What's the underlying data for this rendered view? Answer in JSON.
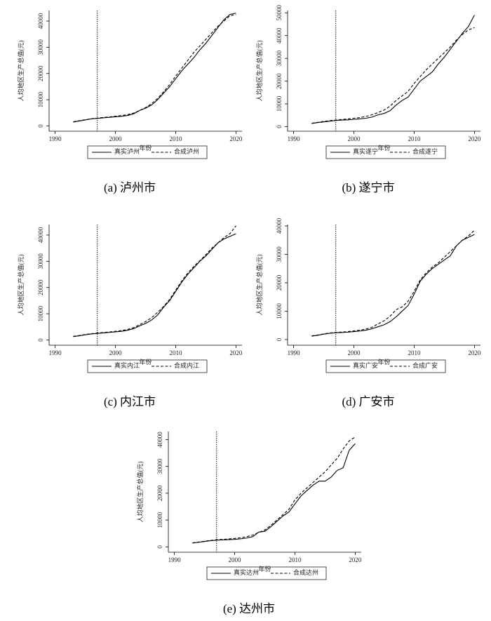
{
  "chart_data": [
    {
      "type": "line",
      "title": "(a) 泸州市",
      "y_label": "人均地区生产总值(元)",
      "x_label": "年份",
      "x": [
        1993,
        1994,
        1995,
        1996,
        1997,
        1998,
        1999,
        2000,
        2001,
        2002,
        2003,
        2004,
        2005,
        2006,
        2007,
        2008,
        2009,
        2010,
        2011,
        2012,
        2013,
        2014,
        2015,
        2016,
        2017,
        2018,
        2019,
        2020
      ],
      "series": [
        {
          "name": "真实泸州",
          "color": "#000000",
          "linestyle": "solid",
          "values": [
            1500,
            1900,
            2300,
            2700,
            2900,
            3100,
            3300,
            3500,
            3700,
            4000,
            4600,
            5900,
            6800,
            8000,
            10000,
            12500,
            15000,
            18000,
            21000,
            23500,
            26000,
            29000,
            31500,
            34500,
            37500,
            40500,
            42500,
            43000
          ]
        },
        {
          "name": "合成泸州",
          "color": "#000000",
          "linestyle": "dashed",
          "values": [
            1600,
            2000,
            2400,
            2750,
            3000,
            3250,
            3450,
            3700,
            3950,
            4300,
            4900,
            5900,
            7000,
            8500,
            10500,
            13000,
            15800,
            19000,
            22000,
            25000,
            28000,
            30500,
            33000,
            35500,
            38000,
            40000,
            42000,
            42500
          ]
        }
      ],
      "vline": 1997,
      "xlim": [
        1989,
        2021
      ],
      "xticks": [
        1990,
        2000,
        2010,
        2020
      ],
      "ylim": [
        -2000,
        44000
      ],
      "yticks": [
        0,
        10000,
        20000,
        30000,
        40000
      ]
    },
    {
      "type": "line",
      "title": "(b) 遂宁市",
      "y_label": "人均地区生产总值(元)",
      "x_label": "年份",
      "x": [
        1993,
        1994,
        1995,
        1996,
        1997,
        1998,
        1999,
        2000,
        2001,
        2002,
        2003,
        2004,
        2005,
        2006,
        2007,
        2008,
        2009,
        2010,
        2011,
        2012,
        2013,
        2014,
        2015,
        2016,
        2017,
        2018,
        2019,
        2020
      ],
      "series": [
        {
          "name": "真实遂宁",
          "color": "#000000",
          "linestyle": "solid",
          "values": [
            1400,
            1800,
            2100,
            2400,
            2700,
            2900,
            3000,
            3200,
            3400,
            3700,
            4200,
            5200,
            5800,
            7000,
            9500,
            11500,
            13000,
            16500,
            20000,
            22000,
            24000,
            27500,
            30500,
            34000,
            37500,
            41000,
            44000,
            49000
          ]
        },
        {
          "name": "合成遂宁",
          "color": "#000000",
          "linestyle": "dashed",
          "values": [
            1500,
            1900,
            2300,
            2650,
            2900,
            3150,
            3400,
            3700,
            4000,
            4500,
            5200,
            6200,
            7300,
            9000,
            11500,
            13500,
            15500,
            19000,
            22000,
            25000,
            27500,
            30000,
            32500,
            35000,
            38000,
            40500,
            42500,
            43500
          ]
        }
      ],
      "vline": 1997,
      "xlim": [
        1989,
        2021
      ],
      "xticks": [
        1990,
        2000,
        2010,
        2020
      ],
      "ylim": [
        -2000,
        51000
      ],
      "yticks": [
        0,
        10000,
        20000,
        30000,
        40000,
        50000
      ]
    },
    {
      "type": "line",
      "title": "(c) 内江市",
      "y_label": "人均地区生产总值(元)",
      "x_label": "年份",
      "x": [
        1993,
        1994,
        1995,
        1996,
        1997,
        1998,
        1999,
        2000,
        2001,
        2002,
        2003,
        2004,
        2005,
        2006,
        2007,
        2008,
        2009,
        2010,
        2011,
        2012,
        2013,
        2014,
        2015,
        2016,
        2017,
        2018,
        2019,
        2020
      ],
      "series": [
        {
          "name": "真实内江",
          "color": "#000000",
          "linestyle": "solid",
          "values": [
            1300,
            1600,
            2000,
            2300,
            2500,
            2700,
            2900,
            3100,
            3300,
            3700,
            4300,
            5400,
            6300,
            7600,
            9500,
            12500,
            15000,
            18500,
            22000,
            25000,
            27500,
            30000,
            32000,
            34500,
            37000,
            38500,
            39500,
            40500
          ]
        },
        {
          "name": "合成内江",
          "color": "#000000",
          "linestyle": "dashed",
          "values": [
            1400,
            1700,
            2100,
            2400,
            2650,
            2850,
            3050,
            3300,
            3600,
            4000,
            4700,
            5800,
            7000,
            8500,
            10500,
            12800,
            15500,
            19000,
            22500,
            25500,
            28000,
            30200,
            32500,
            35000,
            37000,
            39000,
            40500,
            43500
          ]
        }
      ],
      "vline": 1997,
      "xlim": [
        1989,
        2021
      ],
      "xticks": [
        1990,
        2000,
        2010,
        2020
      ],
      "ylim": [
        -2000,
        44000
      ],
      "yticks": [
        0,
        10000,
        20000,
        30000,
        40000
      ]
    },
    {
      "type": "line",
      "title": "(d) 广安市",
      "y_label": "人均地区生产总值(元)",
      "x_label": "年份",
      "x": [
        1993,
        1994,
        1995,
        1996,
        1997,
        1998,
        1999,
        2000,
        2001,
        2002,
        2003,
        2004,
        2005,
        2006,
        2007,
        2008,
        2009,
        2010,
        2011,
        2012,
        2013,
        2014,
        2015,
        2016,
        2017,
        2018,
        2019,
        2020
      ],
      "series": [
        {
          "name": "真实广安",
          "color": "#000000",
          "linestyle": "solid",
          "values": [
            1200,
            1500,
            1900,
            2200,
            2400,
            2500,
            2600,
            2800,
            3000,
            3300,
            3800,
            4500,
            5200,
            6300,
            8000,
            10000,
            12000,
            16000,
            20500,
            23000,
            25000,
            26500,
            28000,
            29500,
            33000,
            35000,
            36000,
            37000
          ]
        },
        {
          "name": "合成广安",
          "color": "#000000",
          "linestyle": "dashed",
          "values": [
            1300,
            1600,
            2000,
            2300,
            2500,
            2650,
            2800,
            3050,
            3300,
            3700,
            4300,
            5500,
            6600,
            8200,
            10500,
            11500,
            13500,
            17000,
            21000,
            23500,
            25500,
            27000,
            29000,
            31000,
            33000,
            35000,
            36500,
            38500
          ]
        }
      ],
      "vline": 1997,
      "xlim": [
        1989,
        2021
      ],
      "xticks": [
        1990,
        2000,
        2010,
        2020
      ],
      "ylim": [
        -2000,
        40500
      ],
      "yticks": [
        0,
        10000,
        20000,
        30000,
        40000
      ]
    },
    {
      "type": "line",
      "title": "(e) 达州市",
      "y_label": "人均地区生产总值(元)",
      "x_label": "年份",
      "x": [
        1993,
        1994,
        1995,
        1996,
        1997,
        1998,
        1999,
        2000,
        2001,
        2002,
        2003,
        2004,
        2005,
        2006,
        2007,
        2008,
        2009,
        2010,
        2011,
        2012,
        2013,
        2014,
        2015,
        2016,
        2017,
        2018,
        2019,
        2020
      ],
      "series": [
        {
          "name": "真实达州",
          "color": "#000000",
          "linestyle": "solid",
          "values": [
            1400,
            1700,
            2000,
            2300,
            2500,
            2600,
            2700,
            2800,
            3000,
            3300,
            3800,
            5500,
            5800,
            7500,
            9500,
            11500,
            13000,
            16000,
            19000,
            21000,
            23000,
            24500,
            24500,
            26000,
            28500,
            29500,
            36000,
            38500
          ]
        },
        {
          "name": "合成达州",
          "color": "#000000",
          "linestyle": "dashed",
          "values": [
            1500,
            1800,
            2100,
            2400,
            2650,
            2800,
            2950,
            3150,
            3400,
            3800,
            4400,
            5400,
            6300,
            8000,
            10000,
            12000,
            14000,
            17500,
            20000,
            22000,
            24000,
            26000,
            28000,
            30500,
            33000,
            36500,
            39500,
            41000
          ]
        }
      ],
      "vline": 1997,
      "xlim": [
        1989,
        2021
      ],
      "xticks": [
        1990,
        2000,
        2010,
        2020
      ],
      "ylim": [
        -2000,
        43000
      ],
      "yticks": [
        0,
        10000,
        20000,
        30000,
        40000
      ]
    }
  ]
}
